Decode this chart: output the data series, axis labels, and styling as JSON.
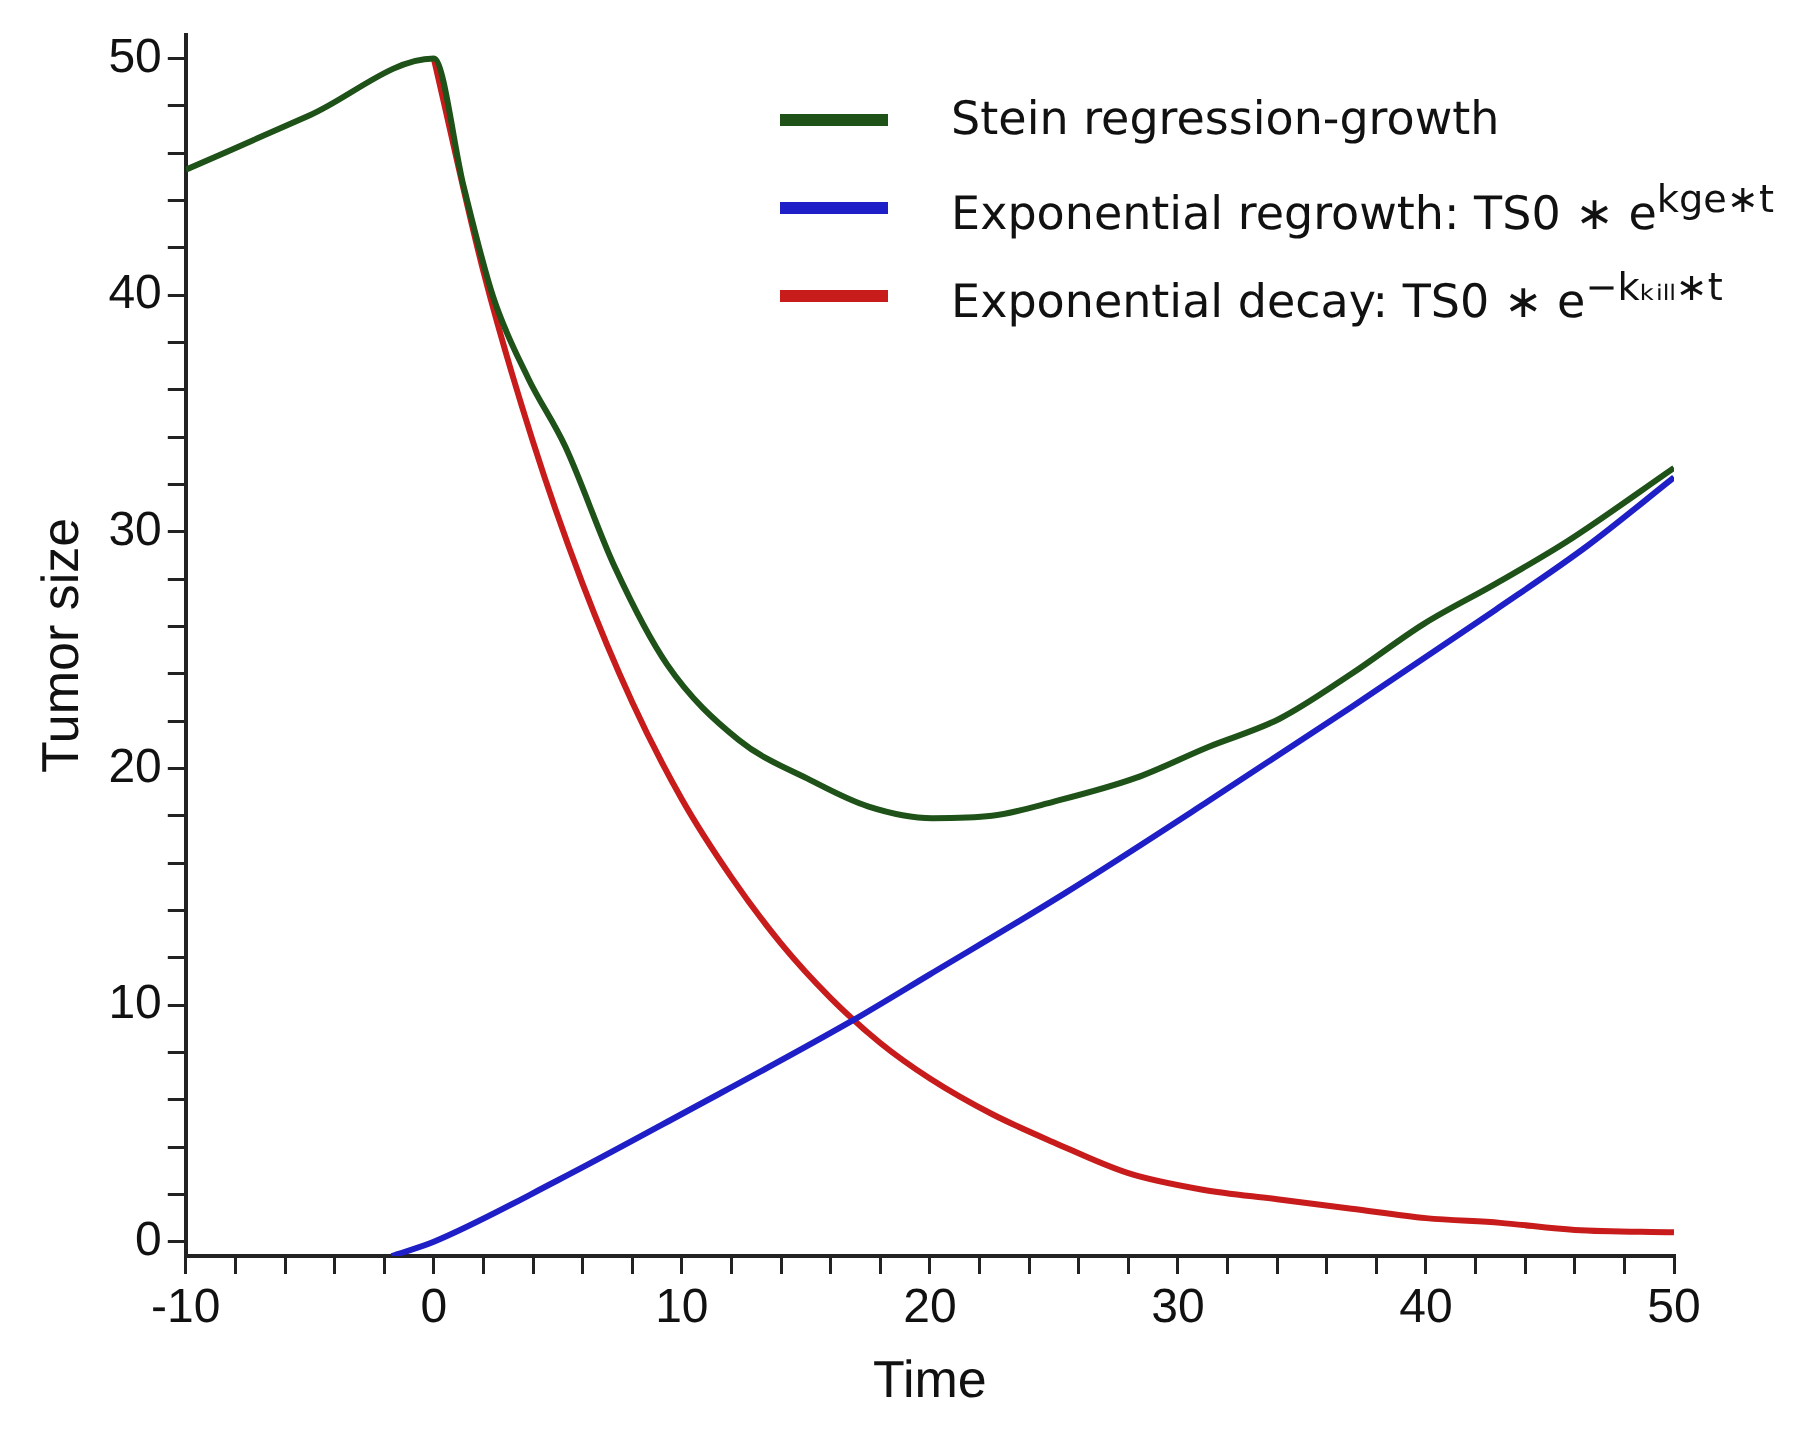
{
  "chart_data": {
    "type": "line",
    "xlabel": "Time",
    "ylabel": "Tumor size",
    "xlim": [
      -10,
      50
    ],
    "ylim": [
      -0.6,
      51
    ],
    "xticks": [
      -10,
      {
        "value": -8,
        "label": null
      },
      {
        "value": -6,
        "label": null
      },
      {
        "value": -4,
        "label": null
      },
      {
        "value": -2,
        "label": null
      },
      0,
      {
        "value": 2,
        "label": null
      },
      {
        "value": 4,
        "label": null
      },
      {
        "value": 6,
        "label": null
      },
      {
        "value": 8,
        "label": null
      },
      10,
      {
        "value": 12,
        "label": null
      },
      {
        "value": 14,
        "label": null
      },
      {
        "value": 16,
        "label": null
      },
      {
        "value": 18,
        "label": null
      },
      20,
      {
        "value": 22,
        "label": null
      },
      {
        "value": 24,
        "label": null
      },
      {
        "value": 26,
        "label": null
      },
      {
        "value": 28,
        "label": null
      },
      30,
      {
        "value": 32,
        "label": null
      },
      {
        "value": 34,
        "label": null
      },
      {
        "value": 36,
        "label": null
      },
      {
        "value": 38,
        "label": null
      },
      40,
      {
        "value": 42,
        "label": null
      },
      {
        "value": 44,
        "label": null
      },
      {
        "value": 46,
        "label": null
      },
      {
        "value": 48,
        "label": null
      },
      50
    ],
    "yticks": [
      0,
      {
        "value": 2,
        "label": null
      },
      {
        "value": 4,
        "label": null
      },
      {
        "value": 6,
        "label": null
      },
      {
        "value": 8,
        "label": null
      },
      10,
      {
        "value": 12,
        "label": null
      },
      {
        "value": 14,
        "label": null
      },
      {
        "value": 16,
        "label": null
      },
      {
        "value": 18,
        "label": null
      },
      20,
      {
        "value": 22,
        "label": null
      },
      {
        "value": 24,
        "label": null
      },
      {
        "value": 26,
        "label": null
      },
      {
        "value": 28,
        "label": null
      },
      30,
      {
        "value": 32,
        "label": null
      },
      {
        "value": 34,
        "label": null
      },
      {
        "value": 36,
        "label": null
      },
      {
        "value": 38,
        "label": null
      },
      40,
      {
        "value": 42,
        "label": null
      },
      {
        "value": 44,
        "label": null
      },
      {
        "value": 46,
        "label": null
      },
      {
        "value": 48,
        "label": null
      },
      50
    ],
    "grid": false,
    "legend": "top right",
    "marker": "none",
    "line_style": "solid",
    "series": [
      {
        "name": "Stein regression-growth",
        "color": "#1e5218",
        "x": [
          -10,
          -5,
          0,
          1.2,
          2.4,
          3.8,
          5.3,
          7.3,
          9.4,
          12.3,
          15.2,
          17.5,
          20.1,
          22.5,
          25,
          28.3,
          31.2,
          34.1,
          37,
          39.9,
          42.8,
          45.7,
          50
        ],
        "values": [
          45.3,
          47.6,
          50,
          44.6,
          39.9,
          36.5,
          33.6,
          28.5,
          24.4,
          21.2,
          19.5,
          18.4,
          17.9,
          18,
          18.6,
          19.6,
          20.9,
          22.1,
          24,
          26.1,
          27.8,
          29.6,
          32.7
        ]
      },
      {
        "name": "Exponential regrowth: TS0 ∗ e$^{kge∗t}$",
        "color": "#1f1fc8",
        "x": [
          -1.7,
          0,
          5,
          10,
          16.8,
          20,
          25.4,
          31.2,
          37,
          42.8,
          46.5,
          50
        ],
        "values": [
          -0.6,
          0,
          2.6,
          5.4,
          9.3,
          11.3,
          14.7,
          18.6,
          22.6,
          26.7,
          29.4,
          32.3
        ]
      },
      {
        "name": "Exponential decay: TS0 ∗ e$^{−kₖᵢₗₗ∗t}$",
        "color": "#c81c1c",
        "x": [
          0,
          2,
          4,
          6,
          8,
          10,
          12,
          14,
          16,
          18,
          20,
          22.5,
          25,
          28,
          31,
          34,
          37,
          40,
          43,
          46,
          50
        ],
        "values": [
          50,
          41,
          33.8,
          27.8,
          22.8,
          18.7,
          15.4,
          12.6,
          10.3,
          8.4,
          6.9,
          5.4,
          4.2,
          2.9,
          2.2,
          1.8,
          1.4,
          1,
          0.8,
          0.5,
          0.4
        ]
      }
    ]
  }
}
